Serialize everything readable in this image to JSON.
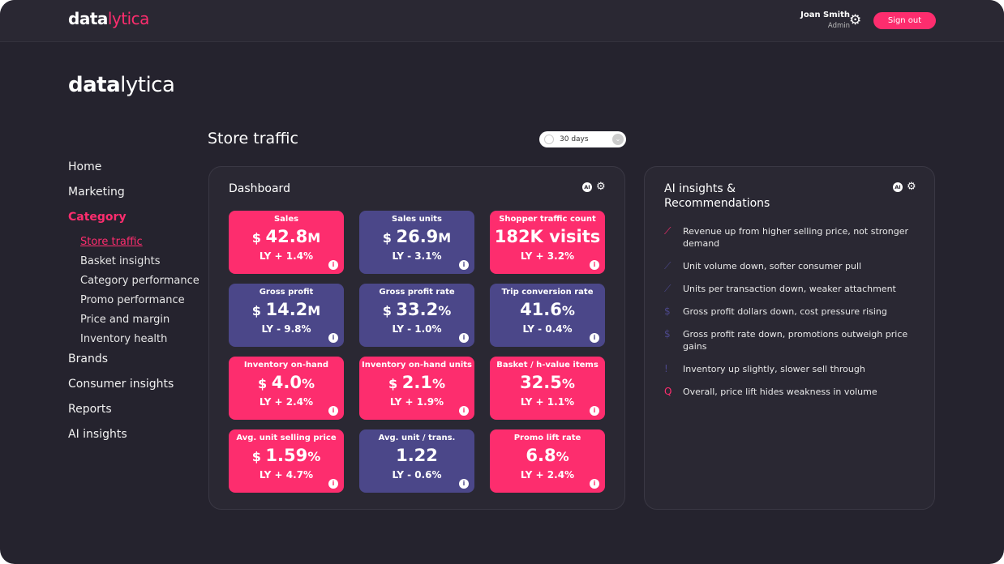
{
  "app": {
    "brand_a": "data",
    "brand_b": "lytica"
  },
  "header": {
    "user_name": "Joan Smith",
    "user_role": "Admin",
    "sign_out": "Sign out"
  },
  "sidebar": {
    "items": [
      {
        "label": "Home",
        "active": false
      },
      {
        "label": "Marketing",
        "active": false
      },
      {
        "label": "Category",
        "active": true,
        "children": [
          {
            "label": "Store traffic",
            "active": true
          },
          {
            "label": "Basket insights"
          },
          {
            "label": "Category performance"
          },
          {
            "label": "Promo performance"
          },
          {
            "label": "Price and margin"
          },
          {
            "label": "Inventory health"
          }
        ]
      },
      {
        "label": "Brands"
      },
      {
        "label": "Consumer insights"
      },
      {
        "label": "Reports"
      },
      {
        "label": "AI insights"
      }
    ]
  },
  "page": {
    "title": "Store traffic",
    "date_range": "30 days"
  },
  "colors": {
    "pink": "#fd2d6e",
    "purple": "#4b4789",
    "bg": "#25232e"
  },
  "dashboard": {
    "title": "Dashboard",
    "ai_badge": "AI",
    "info_glyph": "i",
    "tiles": [
      {
        "title": "Sales",
        "prefix": "$ ",
        "value": "42.8",
        "suffix": "M",
        "ly": "LY + 1.4%",
        "color": "pink"
      },
      {
        "title": "Sales units",
        "prefix": "$ ",
        "value": "26.9",
        "suffix": "M",
        "ly": "LY - 3.1%",
        "color": "purple"
      },
      {
        "title": "Shopper traffic count",
        "prefix": "",
        "value": "182K visits",
        "suffix": "",
        "ly": "LY + 3.2%",
        "color": "pink"
      },
      {
        "title": "Gross profit",
        "prefix": "$ ",
        "value": "14.2",
        "suffix": "M",
        "ly": "LY - 9.8%",
        "color": "purple"
      },
      {
        "title": "Gross profit rate",
        "prefix": "$ ",
        "value": "33.2",
        "suffix": "%",
        "ly": "LY - 1.0%",
        "color": "purple"
      },
      {
        "title": "Trip conversion rate",
        "prefix": "",
        "value": "41.6",
        "suffix": "%",
        "ly": "LY - 0.4%",
        "color": "purple"
      },
      {
        "title": "Inventory on-hand",
        "prefix": "$ ",
        "value": "4.0",
        "suffix": "%",
        "ly": "LY + 2.4%",
        "color": "pink"
      },
      {
        "title": "Inventory on-hand units",
        "prefix": "$ ",
        "value": "2.1",
        "suffix": "%",
        "ly": "LY + 1.9%",
        "color": "pink"
      },
      {
        "title": "Basket / h-value items",
        "prefix": "",
        "value": "32.5",
        "suffix": "%",
        "ly": "LY + 1.1%",
        "color": "pink"
      },
      {
        "title": "Avg. unit selling price",
        "prefix": "$ ",
        "value": "1.59",
        "suffix": "%",
        "ly": "LY + 4.7%",
        "color": "pink"
      },
      {
        "title": "Avg. unit / trans.",
        "prefix": "",
        "value": "1.22",
        "suffix": "",
        "ly": "LY - 0.6%",
        "color": "purple"
      },
      {
        "title": "Promo lift rate",
        "prefix": "",
        "value": "6.8",
        "suffix": "%",
        "ly": "LY + 2.4%",
        "color": "pink"
      }
    ]
  },
  "insights": {
    "title_line1": "AI insights &",
    "title_line2": "Recommendations",
    "ai_badge": "AI",
    "items": [
      {
        "icon": "trend-up-icon",
        "glyph": "⟋",
        "color": "pink",
        "text": "Revenue up from higher selling price, not stronger demand"
      },
      {
        "icon": "trend-icon",
        "glyph": "⟋",
        "color": "purple",
        "text": "Unit volume down, softer consumer pull"
      },
      {
        "icon": "trend-icon",
        "glyph": "⟋",
        "color": "purple",
        "text": "Units per transaction down, weaker attachment"
      },
      {
        "icon": "dollar-circle-icon",
        "glyph": "$",
        "color": "purple",
        "text": "Gross profit dollars down, cost pressure rising"
      },
      {
        "icon": "dollar-circle-icon",
        "glyph": "$",
        "color": "purple",
        "text": "Gross profit rate down, promotions outweigh price gains"
      },
      {
        "icon": "alert-circle-icon",
        "glyph": "!",
        "color": "purple",
        "text": "Inventory up slightly, slower sell through"
      },
      {
        "icon": "search-icon",
        "glyph": "Q",
        "color": "pink",
        "text": "Overall, price lift hides weakness in volume"
      }
    ]
  }
}
